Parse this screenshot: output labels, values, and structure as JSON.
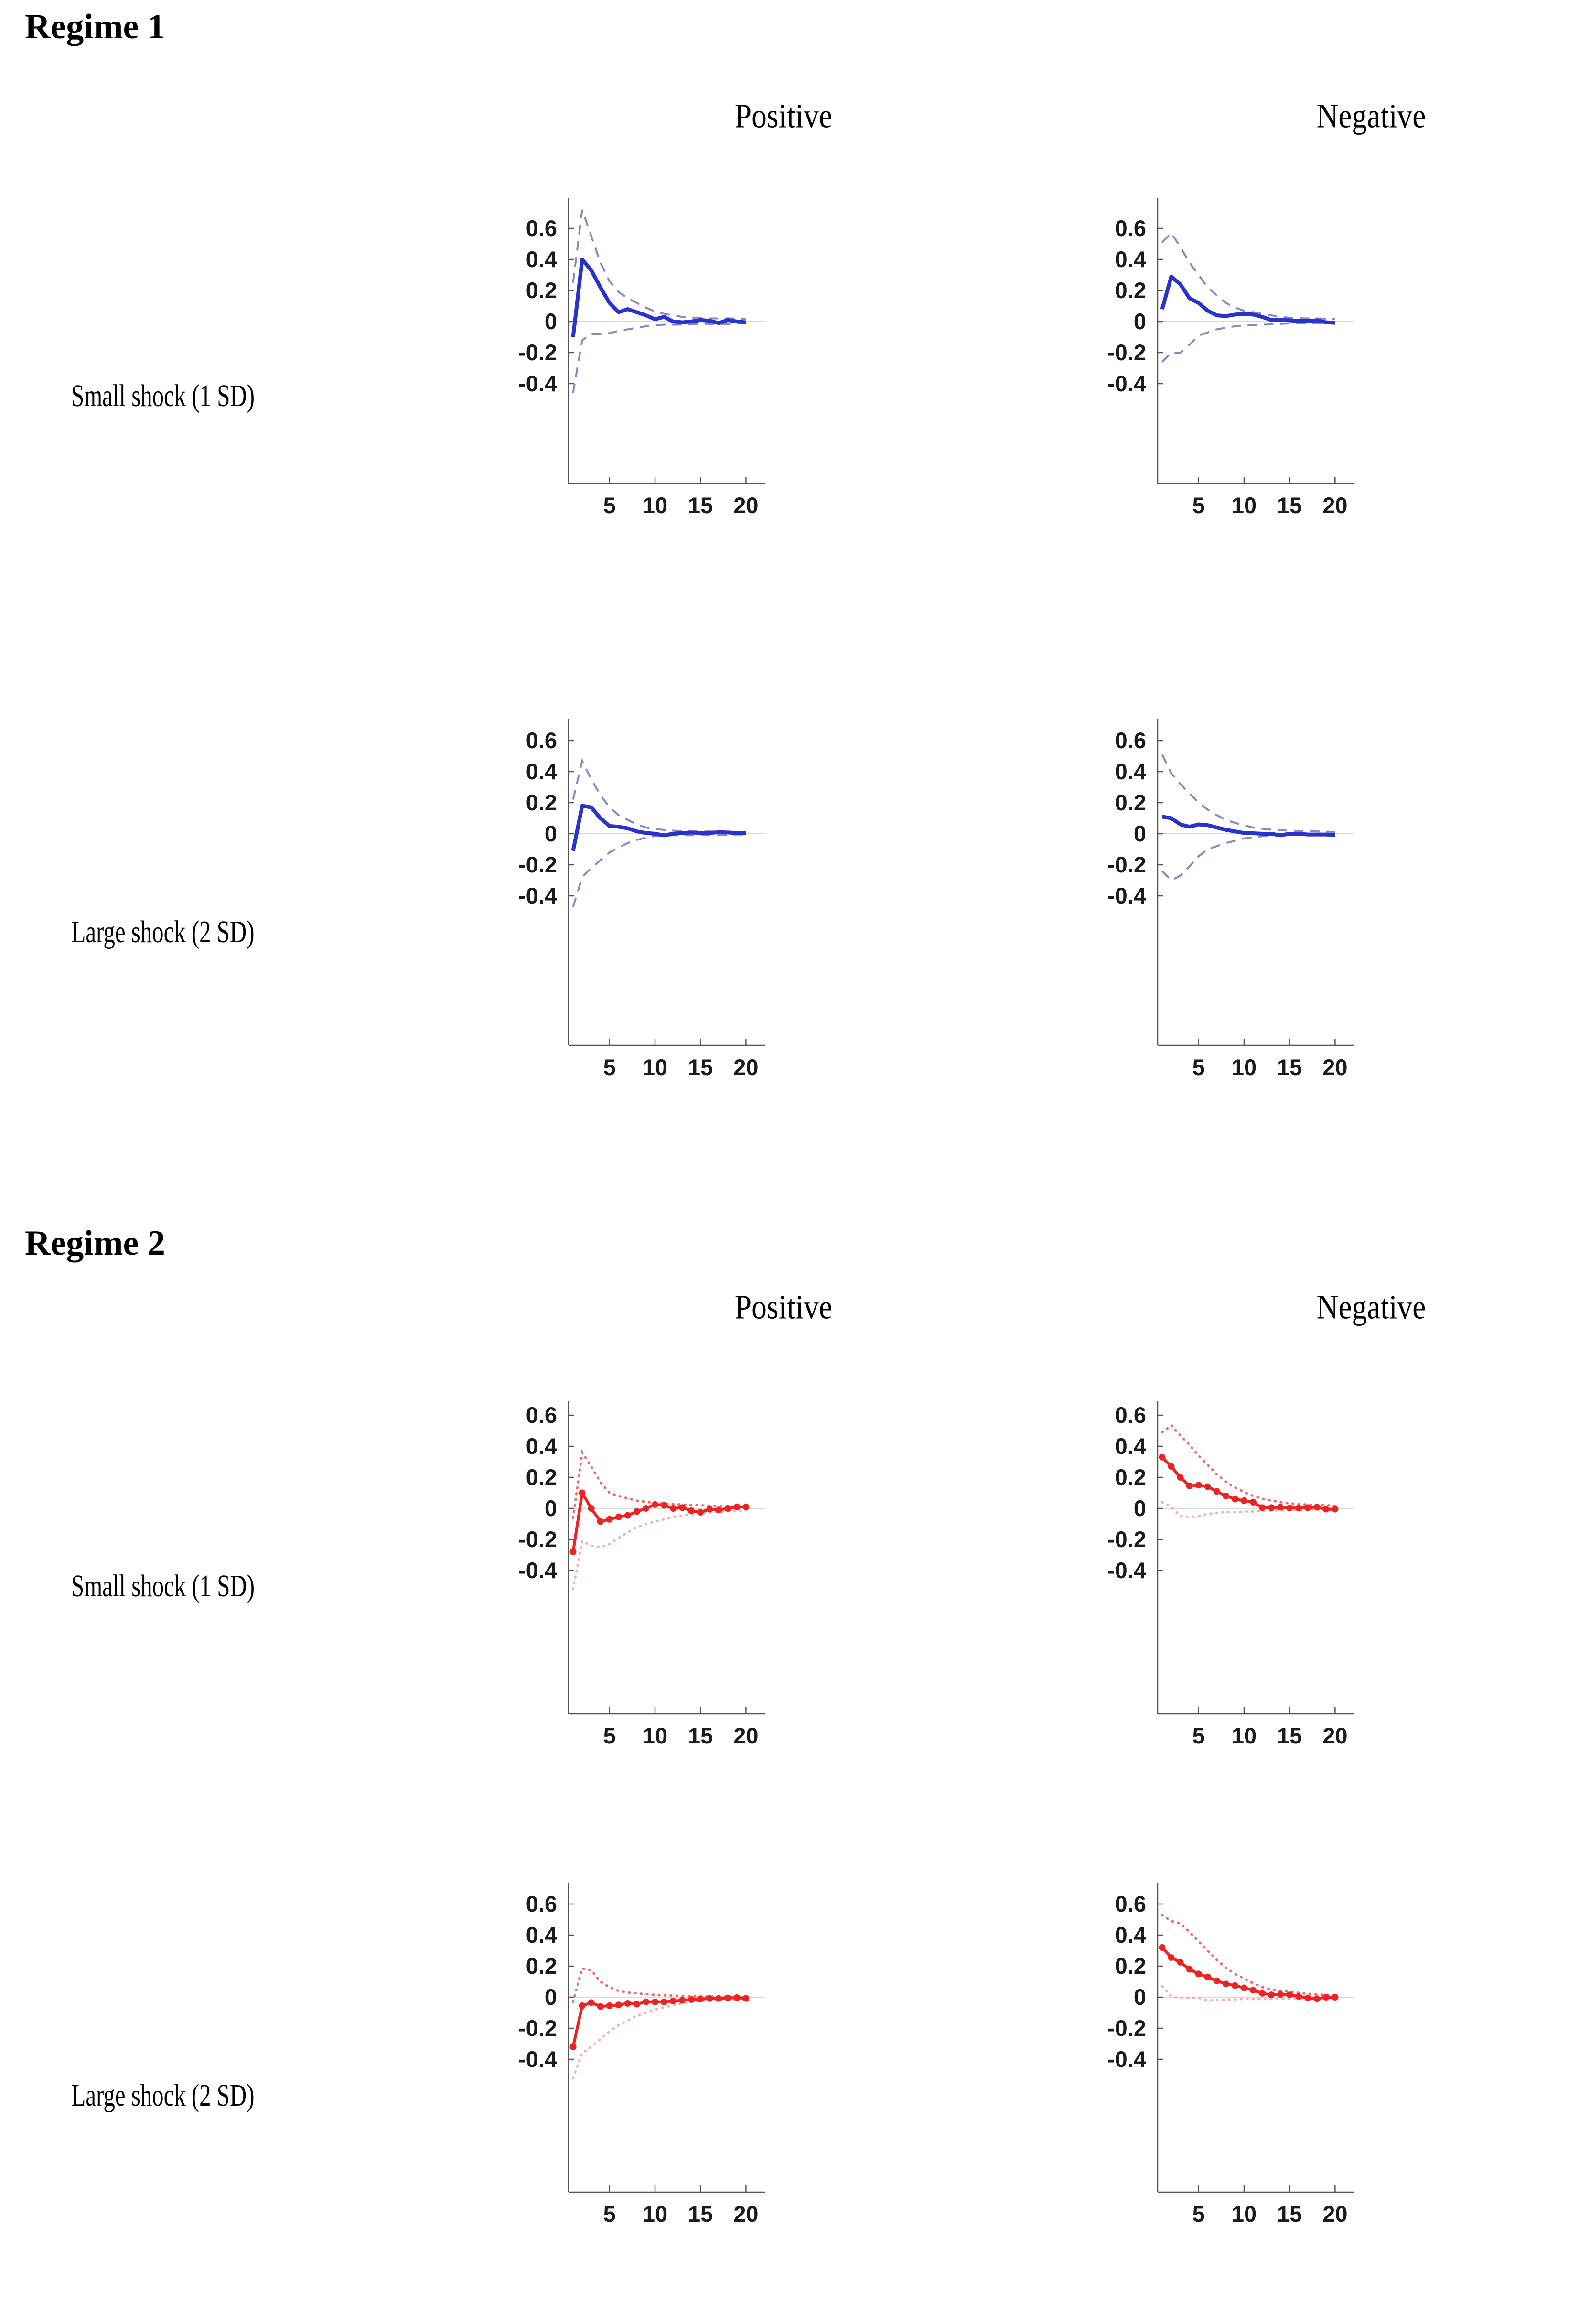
{
  "sections": [
    {
      "title": "Regime 1",
      "columns": [
        "Positive",
        "Negative"
      ],
      "rows": [
        "Small shock (1 SD)",
        "Large shock (2 SD)"
      ]
    },
    {
      "title": "Regime 2",
      "columns": [
        "Positive",
        "Negative"
      ],
      "rows": [
        "Small shock (1 SD)",
        "Large shock (2 SD)"
      ]
    }
  ],
  "colors": {
    "blue_line": "#2833cc",
    "blue_band": "#8488c9",
    "red_line": "#ee2222",
    "red_band_upper": "#ec6a6a",
    "red_band_lower": "#f4afb6",
    "axis": "#555555",
    "zero_line": "#d9d9d9",
    "tick_text": "#1b1b1b"
  },
  "chart_data": [
    {
      "id": "regime1-positive-small",
      "type": "line",
      "regime": "Regime 1",
      "column": "Positive",
      "shock": "Small shock (1 SD)",
      "palette": "blue",
      "markers": false,
      "x": [
        1,
        2,
        3,
        4,
        5,
        6,
        7,
        8,
        9,
        10,
        11,
        12,
        13,
        14,
        15,
        16,
        17,
        18,
        19,
        20
      ],
      "x_ticks": [
        5,
        10,
        15,
        20
      ],
      "y_ticks": [
        0.6,
        0.4,
        0.2,
        0,
        -0.2,
        -0.4
      ],
      "xlim": [
        0.5,
        22
      ],
      "ylim": [
        -1.04,
        0.79
      ],
      "series": {
        "response": [
          -0.1,
          0.4,
          0.33,
          0.22,
          0.12,
          0.06,
          0.08,
          0.06,
          0.04,
          0.015,
          0.03,
          0.0,
          -0.005,
          0.0,
          0.01,
          0.005,
          -0.01,
          0.01,
          0.0,
          -0.005
        ],
        "upper_band": [
          0.25,
          0.72,
          0.55,
          0.38,
          0.26,
          0.19,
          0.15,
          0.12,
          0.09,
          0.065,
          0.05,
          0.04,
          0.03,
          0.025,
          0.025,
          0.02,
          0.02,
          0.02,
          0.02,
          0.015
        ],
        "lower_band": [
          -0.46,
          -0.12,
          -0.08,
          -0.08,
          -0.075,
          -0.06,
          -0.05,
          -0.04,
          -0.03,
          -0.025,
          -0.02,
          -0.02,
          -0.02,
          -0.018,
          -0.015,
          -0.015,
          -0.018,
          -0.015,
          -0.012,
          -0.012
        ]
      }
    },
    {
      "id": "regime1-negative-small",
      "type": "line",
      "regime": "Regime 1",
      "column": "Negative",
      "shock": "Small shock (1 SD)",
      "palette": "blue",
      "markers": false,
      "x": [
        1,
        2,
        3,
        4,
        5,
        6,
        7,
        8,
        9,
        10,
        11,
        12,
        13,
        14,
        15,
        16,
        17,
        18,
        19,
        20
      ],
      "x_ticks": [
        5,
        10,
        15,
        20
      ],
      "y_ticks": [
        0.6,
        0.4,
        0.2,
        0,
        -0.2,
        -0.4
      ],
      "xlim": [
        0.5,
        22
      ],
      "ylim": [
        -1.04,
        0.79
      ],
      "series": {
        "response": [
          0.08,
          0.29,
          0.24,
          0.15,
          0.12,
          0.07,
          0.04,
          0.035,
          0.045,
          0.05,
          0.045,
          0.03,
          0.01,
          0.01,
          0.008,
          0.003,
          0.003,
          0.008,
          -0.005,
          -0.008
        ],
        "upper_band": [
          0.51,
          0.57,
          0.48,
          0.38,
          0.3,
          0.22,
          0.17,
          0.12,
          0.09,
          0.07,
          0.06,
          0.05,
          0.04,
          0.03,
          0.025,
          0.022,
          0.02,
          0.02,
          0.018,
          0.015
        ],
        "lower_band": [
          -0.26,
          -0.2,
          -0.2,
          -0.15,
          -0.09,
          -0.07,
          -0.05,
          -0.04,
          -0.03,
          -0.025,
          -0.022,
          -0.02,
          -0.018,
          -0.015,
          -0.012,
          -0.012,
          -0.01,
          -0.01,
          -0.01,
          -0.01
        ]
      }
    },
    {
      "id": "regime1-positive-large",
      "type": "line",
      "regime": "Regime 1",
      "column": "Positive",
      "shock": "Large shock (2 SD)",
      "palette": "blue",
      "markers": false,
      "x": [
        1,
        2,
        3,
        4,
        5,
        6,
        7,
        8,
        9,
        10,
        11,
        12,
        13,
        14,
        15,
        16,
        17,
        18,
        19,
        20
      ],
      "x_ticks": [
        5,
        10,
        15,
        20
      ],
      "y_ticks": [
        0.6,
        0.4,
        0.2,
        0,
        -0.2,
        -0.4
      ],
      "xlim": [
        0.5,
        22
      ],
      "ylim": [
        -1.36,
        0.74
      ],
      "series": {
        "response": [
          -0.11,
          0.18,
          0.17,
          0.1,
          0.05,
          0.045,
          0.035,
          0.015,
          0.005,
          0.0,
          -0.01,
          0.0,
          0.005,
          0.008,
          0.005,
          0.005,
          0.01,
          0.008,
          0.005,
          0.005
        ],
        "upper_band": [
          0.22,
          0.47,
          0.35,
          0.25,
          0.17,
          0.12,
          0.09,
          0.06,
          0.04,
          0.03,
          0.025,
          0.02,
          0.018,
          0.015,
          0.015,
          0.015,
          0.015,
          0.012,
          0.012,
          0.01
        ],
        "lower_band": [
          -0.47,
          -0.28,
          -0.22,
          -0.17,
          -0.12,
          -0.09,
          -0.06,
          -0.04,
          -0.025,
          -0.015,
          -0.012,
          -0.01,
          -0.01,
          -0.01,
          -0.008,
          -0.008,
          -0.006,
          -0.006,
          -0.005,
          -0.005
        ]
      }
    },
    {
      "id": "regime1-negative-large",
      "type": "line",
      "regime": "Regime 1",
      "column": "Negative",
      "shock": "Large shock (2 SD)",
      "palette": "blue",
      "markers": false,
      "x": [
        1,
        2,
        3,
        4,
        5,
        6,
        7,
        8,
        9,
        10,
        11,
        12,
        13,
        14,
        15,
        16,
        17,
        18,
        19,
        20
      ],
      "x_ticks": [
        5,
        10,
        15,
        20
      ],
      "y_ticks": [
        0.6,
        0.4,
        0.2,
        0,
        -0.2,
        -0.4
      ],
      "xlim": [
        0.5,
        22
      ],
      "ylim": [
        -1.36,
        0.74
      ],
      "series": {
        "response": [
          0.11,
          0.1,
          0.06,
          0.045,
          0.06,
          0.055,
          0.04,
          0.025,
          0.015,
          0.005,
          0.003,
          0.0,
          0.0,
          -0.01,
          0.0,
          0.0,
          -0.005,
          -0.005,
          -0.005,
          -0.008
        ],
        "upper_band": [
          0.51,
          0.39,
          0.32,
          0.26,
          0.2,
          0.155,
          0.12,
          0.09,
          0.07,
          0.055,
          0.04,
          0.032,
          0.026,
          0.022,
          0.02,
          0.018,
          0.016,
          0.015,
          0.013,
          0.012
        ],
        "lower_band": [
          -0.24,
          -0.3,
          -0.27,
          -0.21,
          -0.145,
          -0.1,
          -0.08,
          -0.06,
          -0.045,
          -0.03,
          -0.022,
          -0.016,
          -0.012,
          -0.01,
          -0.009,
          -0.008,
          -0.008,
          -0.006,
          -0.005,
          -0.005
        ]
      }
    },
    {
      "id": "regime2-positive-small",
      "type": "line",
      "regime": "Regime 2",
      "column": "Positive",
      "shock": "Small shock (1 SD)",
      "palette": "red",
      "markers": true,
      "x": [
        1,
        2,
        3,
        4,
        5,
        6,
        7,
        8,
        9,
        10,
        11,
        12,
        13,
        14,
        15,
        16,
        17,
        18,
        19,
        20
      ],
      "x_ticks": [
        5,
        10,
        15,
        20
      ],
      "y_ticks": [
        0.6,
        0.4,
        0.2,
        0,
        -0.2,
        -0.4
      ],
      "xlim": [
        0.5,
        22
      ],
      "ylim": [
        -1.32,
        0.69
      ],
      "series": {
        "response": [
          -0.28,
          0.1,
          0.0,
          -0.085,
          -0.07,
          -0.055,
          -0.045,
          -0.02,
          0.0,
          0.025,
          0.02,
          0.0,
          0.005,
          -0.015,
          -0.025,
          -0.005,
          -0.01,
          0.0,
          0.01,
          0.01
        ],
        "upper_band": [
          -0.06,
          0.36,
          0.27,
          0.17,
          0.1,
          0.08,
          0.065,
          0.05,
          0.042,
          0.035,
          0.03,
          0.028,
          0.025,
          0.022,
          0.02,
          0.018,
          0.015,
          0.012,
          0.012,
          0.01
        ],
        "lower_band": [
          -0.52,
          -0.21,
          -0.24,
          -0.25,
          -0.23,
          -0.19,
          -0.155,
          -0.12,
          -0.1,
          -0.085,
          -0.07,
          -0.055,
          -0.045,
          -0.04,
          -0.032,
          -0.026,
          -0.022,
          -0.018,
          -0.015,
          -0.012
        ]
      }
    },
    {
      "id": "regime2-negative-small",
      "type": "line",
      "regime": "Regime 2",
      "column": "Negative",
      "shock": "Small shock (1 SD)",
      "palette": "red",
      "markers": true,
      "x": [
        1,
        2,
        3,
        4,
        5,
        6,
        7,
        8,
        9,
        10,
        11,
        12,
        13,
        14,
        15,
        16,
        17,
        18,
        19,
        20
      ],
      "x_ticks": [
        5,
        10,
        15,
        20
      ],
      "y_ticks": [
        0.6,
        0.4,
        0.2,
        0,
        -0.2,
        -0.4
      ],
      "xlim": [
        0.5,
        22
      ],
      "ylim": [
        -1.32,
        0.69
      ],
      "series": {
        "response": [
          0.33,
          0.27,
          0.2,
          0.145,
          0.15,
          0.14,
          0.11,
          0.08,
          0.06,
          0.05,
          0.04,
          0.005,
          0.005,
          0.008,
          0.003,
          0.002,
          0.005,
          0.008,
          -0.005,
          -0.005
        ],
        "upper_band": [
          0.49,
          0.535,
          0.47,
          0.41,
          0.34,
          0.28,
          0.22,
          0.17,
          0.135,
          0.105,
          0.08,
          0.062,
          0.05,
          0.04,
          0.032,
          0.028,
          0.024,
          0.022,
          0.02,
          0.018
        ],
        "lower_band": [
          0.04,
          0.01,
          -0.05,
          -0.055,
          -0.05,
          -0.035,
          -0.03,
          -0.022,
          -0.025,
          -0.02,
          -0.02,
          -0.016,
          -0.014,
          -0.013,
          -0.012,
          -0.012,
          -0.01,
          -0.01,
          -0.012,
          -0.012
        ]
      }
    },
    {
      "id": "regime2-positive-large",
      "type": "line",
      "regime": "Regime 2",
      "column": "Positive",
      "shock": "Large shock (2 SD)",
      "palette": "red",
      "markers": true,
      "x": [
        1,
        2,
        3,
        4,
        5,
        6,
        7,
        8,
        9,
        10,
        11,
        12,
        13,
        14,
        15,
        16,
        17,
        18,
        19,
        20
      ],
      "x_ticks": [
        5,
        10,
        15,
        20
      ],
      "y_ticks": [
        0.6,
        0.4,
        0.2,
        0,
        -0.2,
        -0.4
      ],
      "xlim": [
        0.5,
        22
      ],
      "ylim": [
        -1.25,
        0.72
      ],
      "series": {
        "response": [
          -0.32,
          -0.055,
          -0.035,
          -0.06,
          -0.055,
          -0.05,
          -0.04,
          -0.045,
          -0.03,
          -0.03,
          -0.03,
          -0.025,
          -0.02,
          -0.015,
          -0.012,
          -0.008,
          -0.008,
          -0.005,
          -0.003,
          -0.008
        ],
        "upper_band": [
          -0.03,
          0.185,
          0.175,
          0.1,
          0.065,
          0.04,
          0.03,
          0.025,
          0.02,
          0.015,
          0.012,
          0.01,
          0.008,
          0.006,
          0.005,
          0.004,
          0.003,
          0.003,
          0.002,
          0.002
        ],
        "lower_band": [
          -0.52,
          -0.36,
          -0.32,
          -0.27,
          -0.22,
          -0.18,
          -0.15,
          -0.12,
          -0.1,
          -0.08,
          -0.065,
          -0.052,
          -0.04,
          -0.032,
          -0.026,
          -0.022,
          -0.018,
          -0.015,
          -0.012,
          -0.01
        ]
      }
    },
    {
      "id": "regime2-negative-large",
      "type": "line",
      "regime": "Regime 2",
      "column": "Negative",
      "shock": "Large shock (2 SD)",
      "palette": "red",
      "markers": true,
      "x": [
        1,
        2,
        3,
        4,
        5,
        6,
        7,
        8,
        9,
        10,
        11,
        12,
        13,
        14,
        15,
        16,
        17,
        18,
        19,
        20
      ],
      "x_ticks": [
        5,
        10,
        15,
        20
      ],
      "y_ticks": [
        0.6,
        0.4,
        0.2,
        0,
        -0.2,
        -0.4
      ],
      "xlim": [
        0.5,
        22
      ],
      "ylim": [
        -1.25,
        0.72
      ],
      "series": {
        "response": [
          0.32,
          0.255,
          0.225,
          0.18,
          0.15,
          0.13,
          0.105,
          0.085,
          0.075,
          0.06,
          0.045,
          0.025,
          0.015,
          0.018,
          0.015,
          0.005,
          -0.005,
          -0.01,
          0.0,
          0.0
        ],
        "upper_band": [
          0.53,
          0.49,
          0.475,
          0.42,
          0.36,
          0.3,
          0.24,
          0.19,
          0.15,
          0.12,
          0.09,
          0.065,
          0.05,
          0.042,
          0.035,
          0.028,
          0.022,
          0.018,
          0.015,
          0.012
        ],
        "lower_band": [
          0.07,
          0.005,
          -0.005,
          -0.005,
          -0.005,
          -0.02,
          -0.02,
          -0.015,
          -0.015,
          -0.01,
          -0.012,
          -0.012,
          -0.012,
          -0.01,
          -0.008,
          -0.008,
          -0.008,
          -0.008,
          -0.006,
          -0.005
        ]
      }
    }
  ]
}
